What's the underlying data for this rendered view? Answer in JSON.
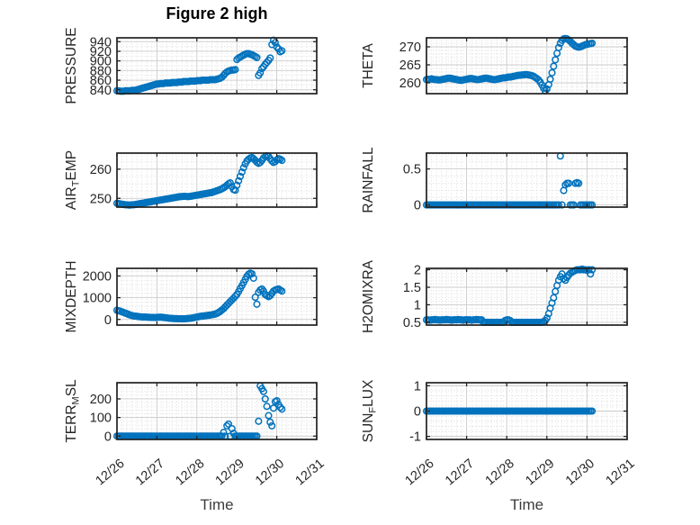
{
  "figure": {
    "title": "Figure 2 high",
    "xlabel": "Time",
    "marker_color": "#0072BD",
    "axis_color": "#222222",
    "tick_text_color": "#262626",
    "grid_color": "#cbcbcb",
    "minor_grid_color": "#d8d8d8",
    "background": "#ffffff"
  },
  "chart_data": {
    "type": "scatter",
    "marker": "o",
    "x_axis": {
      "lim": [
        0,
        5
      ],
      "tick_positions": [
        0,
        1,
        2,
        3,
        4,
        5
      ],
      "tick_labels": [
        "12/26",
        "12/27",
        "12/28",
        "12/29",
        "12/30",
        "12/31"
      ],
      "minor_step": 0.125,
      "label": "Time"
    },
    "series_time": {
      "x_start": 0,
      "x_step_days": 0.0417
    },
    "subplots": [
      {
        "id": "pressure",
        "row": 0,
        "col": 0,
        "ylabel_parts": [
          {
            "text": "PRESSURE"
          }
        ],
        "yticks": [
          840,
          860,
          880,
          900,
          920,
          940
        ],
        "ylim": [
          832,
          948
        ],
        "y_minor_step": 10,
        "values": [
          838,
          838,
          837,
          837,
          837,
          838,
          838,
          838,
          838,
          839,
          839,
          839,
          840,
          841,
          842,
          843,
          844,
          845,
          846,
          847,
          848,
          849,
          850,
          851,
          852,
          852,
          853,
          853,
          853,
          854,
          854,
          854,
          854,
          855,
          855,
          855,
          855,
          856,
          856,
          856,
          857,
          857,
          857,
          857,
          858,
          858,
          858,
          858,
          859,
          859,
          859,
          860,
          860,
          860,
          860,
          860,
          861,
          861,
          861,
          861,
          862,
          863,
          864,
          866,
          870,
          874,
          877,
          879,
          880,
          881,
          881,
          882,
          903,
          906,
          908,
          910,
          912,
          914,
          915,
          915,
          914,
          913,
          911,
          909,
          907,
          870,
          875,
          884,
          888,
          893,
          897,
          901,
          906,
          934,
          943,
          938,
          929,
          925,
          919,
          921
        ]
      },
      {
        "id": "theta",
        "row": 0,
        "col": 1,
        "ylabel_parts": [
          {
            "text": "THETA"
          }
        ],
        "yticks": [
          260,
          265,
          270
        ],
        "ylim": [
          257,
          272.5
        ],
        "y_minor_step": 1,
        "values": [
          260.9,
          261.0,
          261.0,
          261.1,
          261.0,
          260.9,
          260.9,
          260.8,
          260.8,
          260.9,
          261.0,
          261.1,
          261.2,
          261.3,
          261.3,
          261.2,
          261.1,
          261.0,
          260.9,
          260.8,
          260.7,
          260.7,
          260.8,
          260.9,
          261.0,
          261.1,
          261.2,
          261.2,
          261.1,
          261.0,
          260.9,
          260.9,
          261.0,
          261.1,
          261.2,
          261.3,
          261.3,
          261.2,
          261.1,
          261.0,
          260.9,
          260.9,
          261.0,
          261.1,
          261.2,
          261.3,
          261.4,
          261.4,
          261.5,
          261.6,
          261.6,
          261.7,
          261.8,
          261.9,
          262.0,
          262.1,
          262.1,
          262.2,
          262.2,
          262.3,
          262.3,
          262.2,
          262.1,
          262.0,
          261.8,
          261.5,
          261.2,
          260.8,
          260.2,
          259.4,
          258.5,
          257.8,
          258.3,
          259.5,
          261.0,
          262.8,
          264.6,
          266.4,
          268.2,
          269.8,
          271.0,
          271.8,
          272.2,
          272.3,
          272.2,
          271.9,
          271.5,
          271.0,
          270.6,
          270.2,
          270.0,
          269.9,
          270.0,
          270.2,
          270.4,
          270.6,
          270.7,
          270.8,
          270.9,
          271.0
        ]
      },
      {
        "id": "air_temp",
        "row": 1,
        "col": 0,
        "ylabel_parts": [
          {
            "text": "AIR"
          },
          {
            "text": "T",
            "sub": true
          },
          {
            "text": "EMP"
          }
        ],
        "yticks": [
          250,
          260
        ],
        "ylim": [
          247,
          265.5
        ],
        "y_minor_step": 2.5,
        "values": [
          248.3,
          248.2,
          248.1,
          248.0,
          247.9,
          247.8,
          247.8,
          247.7,
          247.7,
          247.8,
          247.8,
          247.9,
          248.0,
          248.1,
          248.2,
          248.3,
          248.4,
          248.5,
          248.6,
          248.7,
          248.8,
          248.9,
          249.0,
          249.1,
          249.2,
          249.3,
          249.4,
          249.5,
          249.6,
          249.7,
          249.8,
          249.9,
          250.0,
          250.1,
          250.2,
          250.3,
          250.4,
          250.5,
          250.6,
          250.6,
          250.7,
          250.7,
          250.6,
          250.6,
          250.7,
          250.8,
          250.9,
          251.0,
          251.1,
          251.2,
          251.3,
          251.4,
          251.5,
          251.6,
          251.7,
          251.8,
          251.9,
          252.0,
          252.2,
          252.4,
          252.6,
          252.8,
          253.0,
          253.3,
          253.6,
          254.0,
          254.5,
          255.0,
          255.3,
          254.0,
          253.0,
          252.8,
          254.5,
          256.0,
          257.5,
          259.0,
          260.5,
          261.8,
          262.8,
          263.4,
          263.8,
          264.0,
          263.6,
          263.0,
          262.4,
          262.0,
          262.3,
          263.0,
          263.8,
          264.3,
          264.6,
          264.4,
          263.6,
          262.8,
          262.3,
          262.6,
          263.2,
          263.6,
          263.4,
          263.0
        ]
      },
      {
        "id": "rainfall",
        "row": 1,
        "col": 1,
        "ylabel_parts": [
          {
            "text": "RAINFALL"
          }
        ],
        "yticks": [
          0,
          0.5
        ],
        "ylim": [
          -0.03,
          0.72
        ],
        "y_minor_step": 0.1,
        "values": [
          0,
          0,
          0,
          0,
          0,
          0,
          0,
          0,
          0,
          0,
          0,
          0,
          0,
          0,
          0,
          0,
          0,
          0,
          0,
          0,
          0,
          0,
          0,
          0,
          0,
          0,
          0,
          0,
          0,
          0,
          0,
          0,
          0,
          0,
          0,
          0,
          0,
          0,
          0,
          0,
          0,
          0,
          0,
          0,
          0,
          0,
          0,
          0,
          0,
          0,
          0,
          0,
          0,
          0,
          0,
          0,
          0,
          0,
          0,
          0,
          0,
          0,
          0,
          0,
          0,
          0,
          0,
          0,
          0,
          0,
          0,
          0,
          0,
          0,
          0,
          0,
          0,
          0,
          0,
          0,
          0.68,
          0,
          0.2,
          0.28,
          0.3,
          0.3,
          0,
          0,
          0,
          0.3,
          0.31,
          0.3,
          0,
          0,
          0,
          0,
          0,
          0,
          0,
          0
        ]
      },
      {
        "id": "mixdepth",
        "row": 2,
        "col": 0,
        "ylabel_parts": [
          {
            "text": "MIXDEPTH"
          }
        ],
        "yticks": [
          0,
          1000,
          2000
        ],
        "ylim": [
          -260,
          2350
        ],
        "y_minor_step": 200,
        "values": [
          420,
          400,
          380,
          350,
          320,
          290,
          260,
          230,
          200,
          180,
          160,
          150,
          140,
          130,
          120,
          115,
          110,
          108,
          105,
          100,
          98,
          95,
          92,
          90,
          95,
          100,
          105,
          100,
          90,
          80,
          70,
          60,
          50,
          45,
          40,
          38,
          35,
          30,
          28,
          25,
          28,
          32,
          38,
          45,
          55,
          65,
          80,
          95,
          110,
          125,
          140,
          150,
          160,
          170,
          180,
          190,
          200,
          215,
          230,
          250,
          280,
          320,
          370,
          430,
          500,
          580,
          660,
          740,
          820,
          900,
          980,
          1060,
          1150,
          1280,
          1420,
          1560,
          1700,
          1840,
          1980,
          2080,
          2130,
          2100,
          1900,
          1020,
          700,
          1250,
          1350,
          1400,
          1300,
          1150,
          1100,
          1050,
          1100,
          1200,
          1300,
          1350,
          1380,
          1400,
          1350,
          1300
        ]
      },
      {
        "id": "h2omixra",
        "row": 2,
        "col": 1,
        "ylabel_parts": [
          {
            "text": "H2OMIXRA"
          }
        ],
        "yticks": [
          0.5,
          1,
          1.5,
          2
        ],
        "ylim": [
          0.42,
          2.04
        ],
        "y_minor_step": 0.1,
        "values": [
          0.57,
          0.57,
          0.56,
          0.57,
          0.57,
          0.58,
          0.57,
          0.57,
          0.56,
          0.57,
          0.57,
          0.57,
          0.58,
          0.57,
          0.57,
          0.56,
          0.57,
          0.57,
          0.57,
          0.58,
          0.57,
          0.57,
          0.56,
          0.57,
          0.57,
          0.57,
          0.57,
          0.56,
          0.57,
          0.57,
          0.58,
          0.57,
          0.57,
          0.57,
          0.5,
          0.5,
          0.5,
          0.5,
          0.5,
          0.5,
          0.5,
          0.5,
          0.5,
          0.5,
          0.5,
          0.5,
          0.5,
          0.55,
          0.57,
          0.57,
          0.55,
          0.5,
          0.5,
          0.5,
          0.5,
          0.5,
          0.5,
          0.5,
          0.5,
          0.5,
          0.5,
          0.5,
          0.5,
          0.5,
          0.5,
          0.5,
          0.5,
          0.5,
          0.5,
          0.5,
          0.52,
          0.55,
          0.62,
          0.75,
          0.9,
          1.05,
          1.2,
          1.38,
          1.55,
          1.7,
          1.8,
          1.88,
          1.75,
          1.7,
          1.78,
          1.85,
          1.9,
          1.93,
          1.96,
          1.98,
          2.0,
          2.0,
          2.0,
          2.02,
          2.0,
          2.0,
          1.98,
          2.0,
          1.88,
          2.0
        ]
      },
      {
        "id": "terr_msl",
        "row": 3,
        "col": 0,
        "ylabel_parts": [
          {
            "text": "TERR"
          },
          {
            "text": "M",
            "sub": true
          },
          {
            "text": "SL"
          }
        ],
        "yticks": [
          0,
          100,
          200
        ],
        "ylim": [
          -18,
          287
        ],
        "y_minor_step": 20,
        "values": [
          0,
          0,
          0,
          0,
          0,
          0,
          0,
          0,
          0,
          0,
          0,
          0,
          0,
          0,
          0,
          0,
          0,
          0,
          0,
          0,
          0,
          0,
          0,
          0,
          0,
          0,
          0,
          0,
          0,
          0,
          0,
          0,
          0,
          0,
          0,
          0,
          0,
          0,
          0,
          0,
          0,
          0,
          0,
          0,
          0,
          0,
          0,
          0,
          0,
          0,
          0,
          0,
          0,
          0,
          0,
          0,
          0,
          0,
          0,
          0,
          0,
          0,
          0,
          0,
          20,
          0,
          55,
          65,
          0,
          40,
          15,
          0,
          0,
          0,
          0,
          0,
          0,
          0,
          0,
          0,
          0,
          0,
          0,
          0,
          0,
          80,
          270,
          255,
          240,
          200,
          160,
          110,
          75,
          55,
          150,
          185,
          190,
          170,
          155,
          145
        ]
      },
      {
        "id": "sun_flux",
        "row": 3,
        "col": 1,
        "ylabel_parts": [
          {
            "text": "SUN"
          },
          {
            "text": "F",
            "sub": true
          },
          {
            "text": "LUX"
          }
        ],
        "yticks": [
          -1,
          0,
          1
        ],
        "ylim": [
          -1.12,
          1.12
        ],
        "y_minor_step": 0.2,
        "values": [
          0,
          0,
          0,
          0,
          0,
          0,
          0,
          0,
          0,
          0,
          0,
          0,
          0,
          0,
          0,
          0,
          0,
          0,
          0,
          0,
          0,
          0,
          0,
          0,
          0,
          0,
          0,
          0,
          0,
          0,
          0,
          0,
          0,
          0,
          0,
          0,
          0,
          0,
          0,
          0,
          0,
          0,
          0,
          0,
          0,
          0,
          0,
          0,
          0,
          0,
          0,
          0,
          0,
          0,
          0,
          0,
          0,
          0,
          0,
          0,
          0,
          0,
          0,
          0,
          0,
          0,
          0,
          0,
          0,
          0,
          0,
          0,
          0,
          0,
          0,
          0,
          0,
          0,
          0,
          0,
          0,
          0,
          0,
          0,
          0,
          0,
          0,
          0,
          0,
          0,
          0,
          0,
          0,
          0,
          0,
          0,
          0,
          0,
          0,
          0
        ]
      }
    ]
  }
}
